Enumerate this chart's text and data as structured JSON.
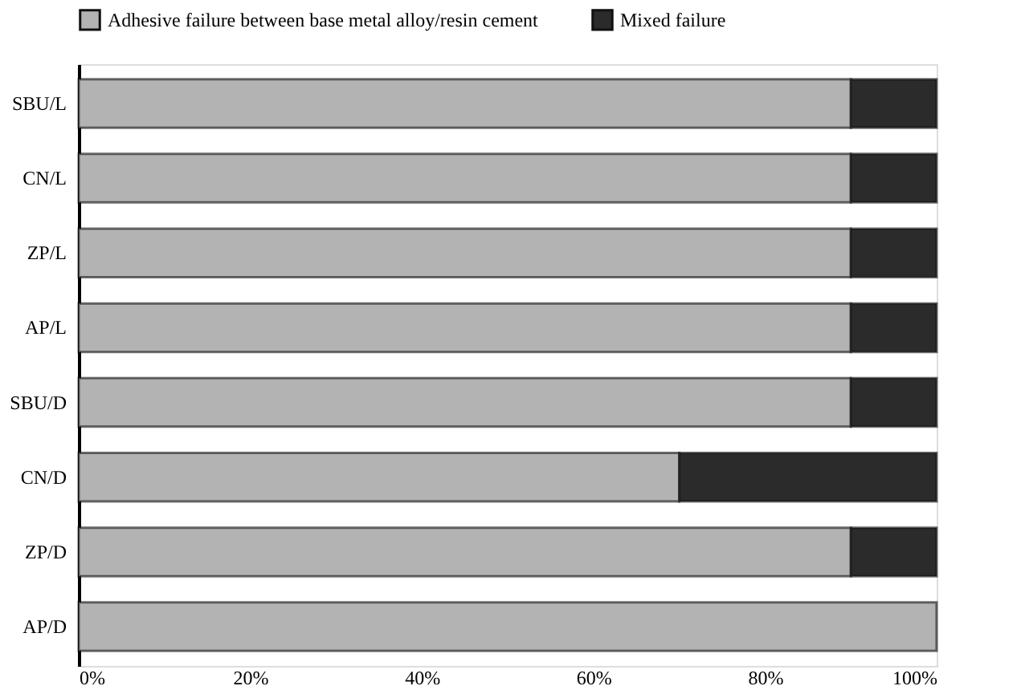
{
  "chart_data": {
    "type": "bar",
    "orientation": "horizontal",
    "stacked": true,
    "categories": [
      "SBU/L",
      "CN/L",
      "ZP/L",
      "AP/L",
      "SBU/D",
      "CN/D",
      "ZP/D",
      "AP/D"
    ],
    "series": [
      {
        "name": "Adhesive failure between base metal alloy/resin cement",
        "color": "#b3b3b3",
        "values": [
          90,
          90,
          90,
          90,
          90,
          70,
          90,
          100
        ]
      },
      {
        "name": "Mixed failure",
        "color": "#2b2b2b",
        "values": [
          10,
          10,
          10,
          10,
          10,
          30,
          10,
          null
        ]
      }
    ],
    "xlim": [
      0,
      100
    ],
    "xticks": [
      {
        "value": 0,
        "label": "0%"
      },
      {
        "value": 20,
        "label": "20%"
      },
      {
        "value": 40,
        "label": "40%"
      },
      {
        "value": 60,
        "label": "60%"
      },
      {
        "value": 80,
        "label": "80%"
      },
      {
        "value": 100,
        "label": "100%"
      }
    ],
    "grid": false,
    "legend": "top"
  }
}
